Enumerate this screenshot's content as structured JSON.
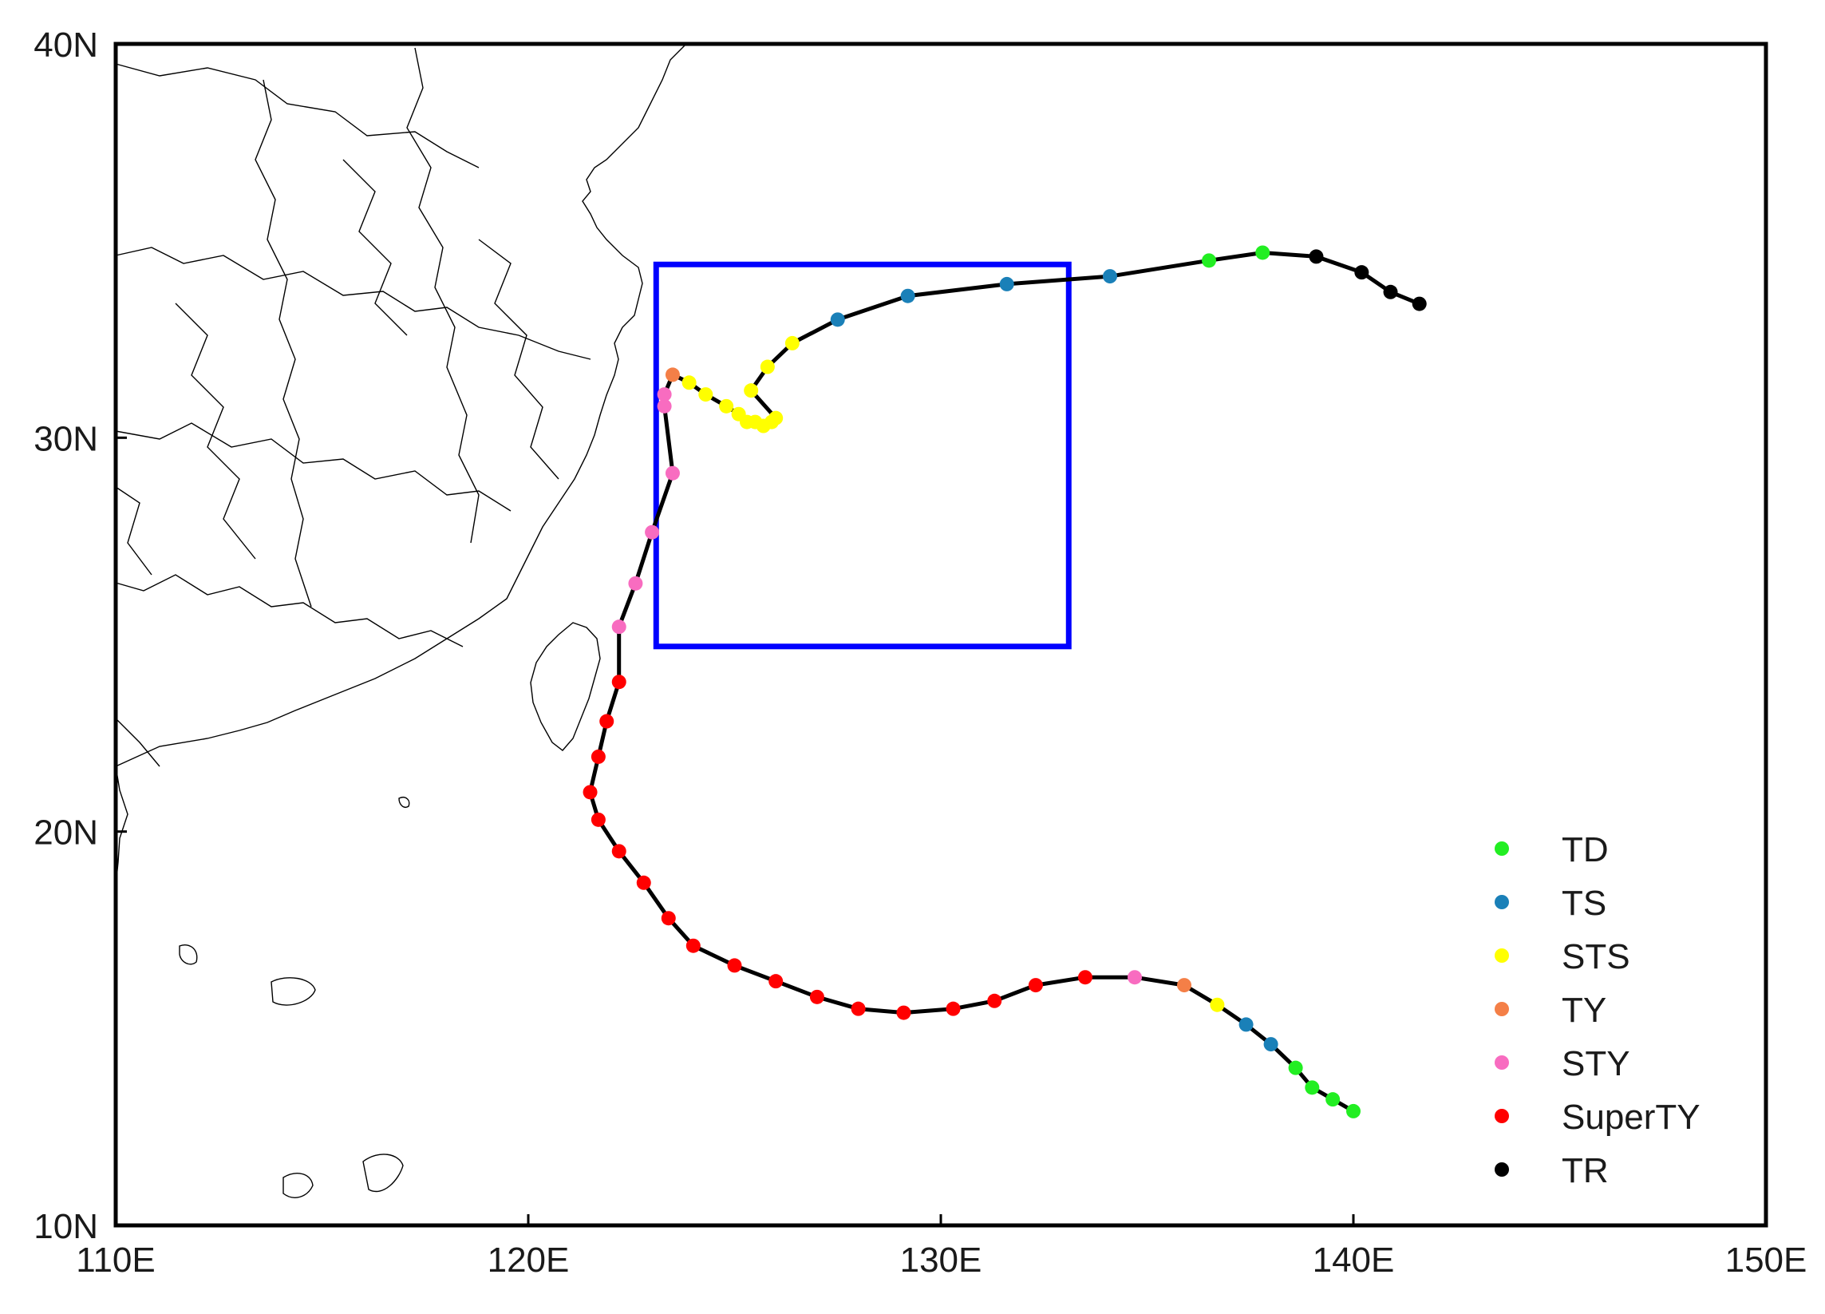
{
  "chart_data": {
    "type": "scatter",
    "subtype": "tropical cyclone track map",
    "title": "",
    "xlabel": "",
    "ylabel": "",
    "xlim": [
      110,
      150
    ],
    "ylim": [
      10,
      40
    ],
    "x_ticks": [
      110,
      120,
      130,
      140,
      150
    ],
    "x_tick_labels": [
      "110E",
      "120E",
      "130E",
      "140E",
      "150E"
    ],
    "y_ticks": [
      10,
      20,
      30,
      40
    ],
    "y_tick_labels": [
      "10N",
      "20N",
      "30N",
      "40N"
    ],
    "grid": false,
    "legend_position": "bottom-right",
    "categories": [
      {
        "code": "TD",
        "color": "#22ee22"
      },
      {
        "code": "TS",
        "color": "#1a80b8"
      },
      {
        "code": "STS",
        "color": "#ffff00"
      },
      {
        "code": "TY",
        "color": "#f47f47"
      },
      {
        "code": "STY",
        "color": "#f86cc0"
      },
      {
        "code": "SuperTY",
        "color": "#ff0000"
      },
      {
        "code": "TR",
        "color": "#000000"
      }
    ],
    "track_line_color": "#000000",
    "box": {
      "lon_min": 123.1,
      "lon_max": 133.1,
      "lat_min": 24.7,
      "lat_max": 34.4,
      "color": "#0000ff"
    },
    "track": [
      {
        "lon": 140.0,
        "lat": 12.9,
        "cat": "TD"
      },
      {
        "lon": 139.5,
        "lat": 13.2,
        "cat": "TD"
      },
      {
        "lon": 139.0,
        "lat": 13.5,
        "cat": "TD"
      },
      {
        "lon": 138.6,
        "lat": 14.0,
        "cat": "TD"
      },
      {
        "lon": 138.0,
        "lat": 14.6,
        "cat": "TS"
      },
      {
        "lon": 137.4,
        "lat": 15.1,
        "cat": "TS"
      },
      {
        "lon": 136.7,
        "lat": 15.6,
        "cat": "STS"
      },
      {
        "lon": 135.9,
        "lat": 16.1,
        "cat": "TY"
      },
      {
        "lon": 134.7,
        "lat": 16.3,
        "cat": "STY"
      },
      {
        "lon": 133.5,
        "lat": 16.3,
        "cat": "SuperTY"
      },
      {
        "lon": 132.3,
        "lat": 16.1,
        "cat": "SuperTY"
      },
      {
        "lon": 131.3,
        "lat": 15.7,
        "cat": "SuperTY"
      },
      {
        "lon": 130.3,
        "lat": 15.5,
        "cat": "SuperTY"
      },
      {
        "lon": 129.1,
        "lat": 15.4,
        "cat": "SuperTY"
      },
      {
        "lon": 128.0,
        "lat": 15.5,
        "cat": "SuperTY"
      },
      {
        "lon": 127.0,
        "lat": 15.8,
        "cat": "SuperTY"
      },
      {
        "lon": 126.0,
        "lat": 16.2,
        "cat": "SuperTY"
      },
      {
        "lon": 125.0,
        "lat": 16.6,
        "cat": "SuperTY"
      },
      {
        "lon": 124.0,
        "lat": 17.1,
        "cat": "SuperTY"
      },
      {
        "lon": 123.4,
        "lat": 17.8,
        "cat": "SuperTY"
      },
      {
        "lon": 122.8,
        "lat": 18.7,
        "cat": "SuperTY"
      },
      {
        "lon": 122.2,
        "lat": 19.5,
        "cat": "SuperTY"
      },
      {
        "lon": 121.7,
        "lat": 20.3,
        "cat": "SuperTY"
      },
      {
        "lon": 121.5,
        "lat": 21.0,
        "cat": "SuperTY"
      },
      {
        "lon": 121.7,
        "lat": 21.9,
        "cat": "SuperTY"
      },
      {
        "lon": 121.9,
        "lat": 22.8,
        "cat": "SuperTY"
      },
      {
        "lon": 122.2,
        "lat": 23.8,
        "cat": "SuperTY"
      },
      {
        "lon": 122.2,
        "lat": 25.2,
        "cat": "STY"
      },
      {
        "lon": 122.6,
        "lat": 26.3,
        "cat": "STY"
      },
      {
        "lon": 123.0,
        "lat": 27.6,
        "cat": "STY"
      },
      {
        "lon": 123.5,
        "lat": 29.1,
        "cat": "STY"
      },
      {
        "lon": 123.3,
        "lat": 30.8,
        "cat": "STY"
      },
      {
        "lon": 123.3,
        "lat": 31.1,
        "cat": "STY"
      },
      {
        "lon": 123.5,
        "lat": 31.6,
        "cat": "TY"
      },
      {
        "lon": 123.9,
        "lat": 31.4,
        "cat": "STS"
      },
      {
        "lon": 124.3,
        "lat": 31.1,
        "cat": "STS"
      },
      {
        "lon": 124.8,
        "lat": 30.8,
        "cat": "STS"
      },
      {
        "lon": 125.1,
        "lat": 30.6,
        "cat": "STS"
      },
      {
        "lon": 125.3,
        "lat": 30.4,
        "cat": "STS"
      },
      {
        "lon": 125.5,
        "lat": 30.4,
        "cat": "STS"
      },
      {
        "lon": 125.7,
        "lat": 30.3,
        "cat": "STS"
      },
      {
        "lon": 125.9,
        "lat": 30.4,
        "cat": "STS"
      },
      {
        "lon": 126.0,
        "lat": 30.5,
        "cat": "STS"
      },
      {
        "lon": 125.4,
        "lat": 31.2,
        "cat": "STS"
      },
      {
        "lon": 125.8,
        "lat": 31.8,
        "cat": "STS"
      },
      {
        "lon": 126.4,
        "lat": 32.4,
        "cat": "STS"
      },
      {
        "lon": 127.5,
        "lat": 33.0,
        "cat": "TS"
      },
      {
        "lon": 129.2,
        "lat": 33.6,
        "cat": "TS"
      },
      {
        "lon": 131.6,
        "lat": 33.9,
        "cat": "TS"
      },
      {
        "lon": 134.1,
        "lat": 34.1,
        "cat": "TS"
      },
      {
        "lon": 136.5,
        "lat": 34.5,
        "cat": "TD"
      },
      {
        "lon": 137.8,
        "lat": 34.7,
        "cat": "TD"
      },
      {
        "lon": 139.1,
        "lat": 34.6,
        "cat": "TR"
      },
      {
        "lon": 140.2,
        "lat": 34.2,
        "cat": "TR"
      },
      {
        "lon": 140.9,
        "lat": 33.7,
        "cat": "TR"
      },
      {
        "lon": 141.6,
        "lat": 33.4,
        "cat": "TR"
      }
    ]
  }
}
